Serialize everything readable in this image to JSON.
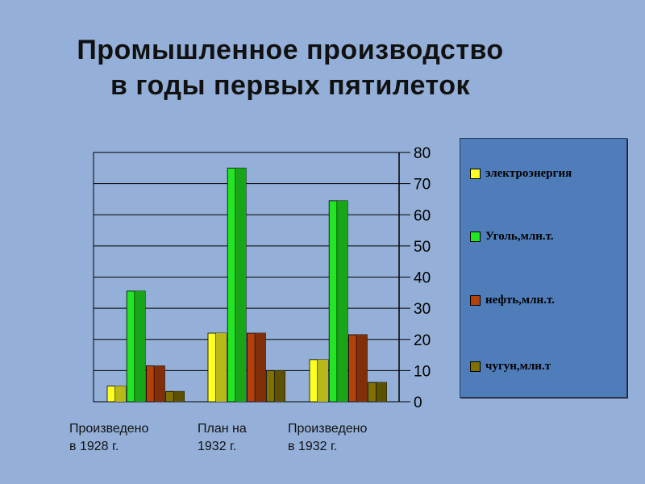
{
  "title_line1": "Промышленное производство",
  "title_line2": "в годы первых пятилеток",
  "colors": {
    "background": "#94B0D8",
    "legend_bg": "#4F7DBA",
    "series": [
      "#FFFF22",
      "#22E622",
      "#B3410C",
      "#807000"
    ]
  },
  "chart_data": {
    "type": "bar",
    "categories": [
      "Произведено\nв 1928 г.",
      "План на\n1932 г.",
      "Произведено\nв 1932 г."
    ],
    "series": [
      {
        "name": "электроэнергия",
        "values": [
          5,
          22,
          13.5
        ]
      },
      {
        "name": "Уголь,млн.т.",
        "values": [
          35.5,
          75,
          64.5
        ]
      },
      {
        "name": "нефть,млн.т.",
        "values": [
          11.5,
          22,
          21.5
        ]
      },
      {
        "name": "чугун,млн.т",
        "values": [
          3.3,
          10,
          6.2
        ]
      }
    ],
    "ylim": [
      0,
      80
    ],
    "yticks": [
      "0",
      "10",
      "20",
      "30",
      "40",
      "50",
      "60",
      "70",
      "80"
    ],
    "grid": true,
    "legend_position": "right"
  }
}
